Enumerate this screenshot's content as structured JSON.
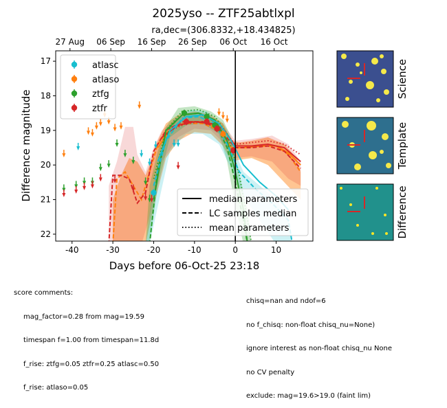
{
  "chart_data": {
    "type": "scatter",
    "title": "2025yso -- ZTF25abtlxpl",
    "subtitle": "ra,dec=(306.8332,+18.434825)",
    "xlabel": "Days before 06-Oct-25 23:18",
    "ylabel": "Difference magnitude",
    "xlim": [
      -44,
      19
    ],
    "ylim": [
      22.2,
      16.7
    ],
    "y_inverted": true,
    "xticks": [
      -40,
      -30,
      -20,
      -10,
      0,
      10
    ],
    "yticks": [
      17,
      18,
      19,
      20,
      21,
      22
    ],
    "top_axis_ticks": [
      {
        "label": "27 Aug",
        "x": -40.5
      },
      {
        "label": "06 Sep",
        "x": -30.5
      },
      {
        "label": "16 Sep",
        "x": -20.5
      },
      {
        "label": "26 Sep",
        "x": -10.5
      },
      {
        "label": "06 Oct",
        "x": -0.5
      },
      {
        "label": "16 Oct",
        "x": 9.5
      }
    ],
    "vline_x": 0,
    "legend_position": "upper-left",
    "series": [
      {
        "name": "atlasc",
        "color": "#17becf",
        "points": [
          {
            "x": -20.0,
            "y": 20.8
          }
        ],
        "upper_limits": [
          {
            "x": -38.5,
            "y": 19.5
          },
          {
            "x": -23.0,
            "y": 19.7
          },
          {
            "x": -21.0,
            "y": 19.95
          },
          {
            "x": -19.5,
            "y": 19.45
          },
          {
            "x": -15.0,
            "y": 19.4
          },
          {
            "x": -14.0,
            "y": 19.4
          }
        ]
      },
      {
        "name": "atlaso",
        "color": "#ff7f0e",
        "points": [
          {
            "x": -3.0,
            "y": 19.1
          }
        ],
        "upper_limits": [
          {
            "x": -42.0,
            "y": 19.7
          },
          {
            "x": -36.0,
            "y": 19.05
          },
          {
            "x": -35.0,
            "y": 19.1
          },
          {
            "x": -34.0,
            "y": 18.9
          },
          {
            "x": -33.0,
            "y": 18.8
          },
          {
            "x": -32.0,
            "y": 18.55
          },
          {
            "x": -31.0,
            "y": 18.75
          },
          {
            "x": -29.5,
            "y": 18.95
          },
          {
            "x": -28.0,
            "y": 18.9
          },
          {
            "x": -23.5,
            "y": 18.3
          },
          {
            "x": -4.0,
            "y": 18.5
          },
          {
            "x": -3.0,
            "y": 18.6
          },
          {
            "x": -2.0,
            "y": 18.7
          }
        ]
      },
      {
        "name": "ztfg",
        "color": "#2ca02c",
        "points": [
          {
            "x": -12.5,
            "y": 18.5
          },
          {
            "x": -7.0,
            "y": 18.6
          },
          {
            "x": -5.0,
            "y": 18.85
          }
        ],
        "upper_limits": [
          {
            "x": -42.0,
            "y": 20.7
          },
          {
            "x": -39.0,
            "y": 20.6
          },
          {
            "x": -37.0,
            "y": 20.5
          },
          {
            "x": -35.0,
            "y": 20.5
          },
          {
            "x": -33.0,
            "y": 20.1
          },
          {
            "x": -31.0,
            "y": 20.0
          },
          {
            "x": -29.0,
            "y": 19.4
          },
          {
            "x": -27.0,
            "y": 19.7
          },
          {
            "x": -25.0,
            "y": 19.9
          },
          {
            "x": -22.0,
            "y": 20.5
          },
          {
            "x": -21.0,
            "y": 21.0
          }
        ]
      },
      {
        "name": "ztfr",
        "color": "#d62728",
        "points": [
          {
            "x": -12.0,
            "y": 18.75
          },
          {
            "x": -7.0,
            "y": 18.75
          },
          {
            "x": -4.5,
            "y": 18.95
          },
          {
            "x": -0.5,
            "y": 19.58
          }
        ],
        "upper_limits": [
          {
            "x": -42.0,
            "y": 20.85
          },
          {
            "x": -39.0,
            "y": 20.75
          },
          {
            "x": -37.0,
            "y": 20.65
          },
          {
            "x": -35.0,
            "y": 20.6
          },
          {
            "x": -33.0,
            "y": 20.4
          },
          {
            "x": -29.5,
            "y": 20.45
          },
          {
            "x": -25.0,
            "y": 20.7
          },
          {
            "x": -22.0,
            "y": 20.95
          },
          {
            "x": -20.5,
            "y": 21.0
          },
          {
            "x": -14.0,
            "y": 20.05
          }
        ]
      }
    ],
    "model_legend": [
      "median parameters",
      "LC samples median",
      "mean parameters"
    ],
    "cutout_labels": [
      "Science",
      "Template",
      "Difference"
    ]
  },
  "comments": {
    "header": "score comments:",
    "left": [
      "mag_factor=0.28 from mag=19.59",
      "timespan f=1.00 from timespan=11.8d",
      "f_rise: ztfg=0.05 ztfr=0.25 atlasc=0.50",
      "f_rise: atlaso=0.05"
    ],
    "right": [
      "chisq=nan and ndof=6",
      "no f_chisq: non-float chisq_nu=None)",
      "ignore interest as non-float chisq_nu None",
      "no CV penalty",
      "exclude: mag=19.6>19.0 (faint lim)"
    ]
  }
}
